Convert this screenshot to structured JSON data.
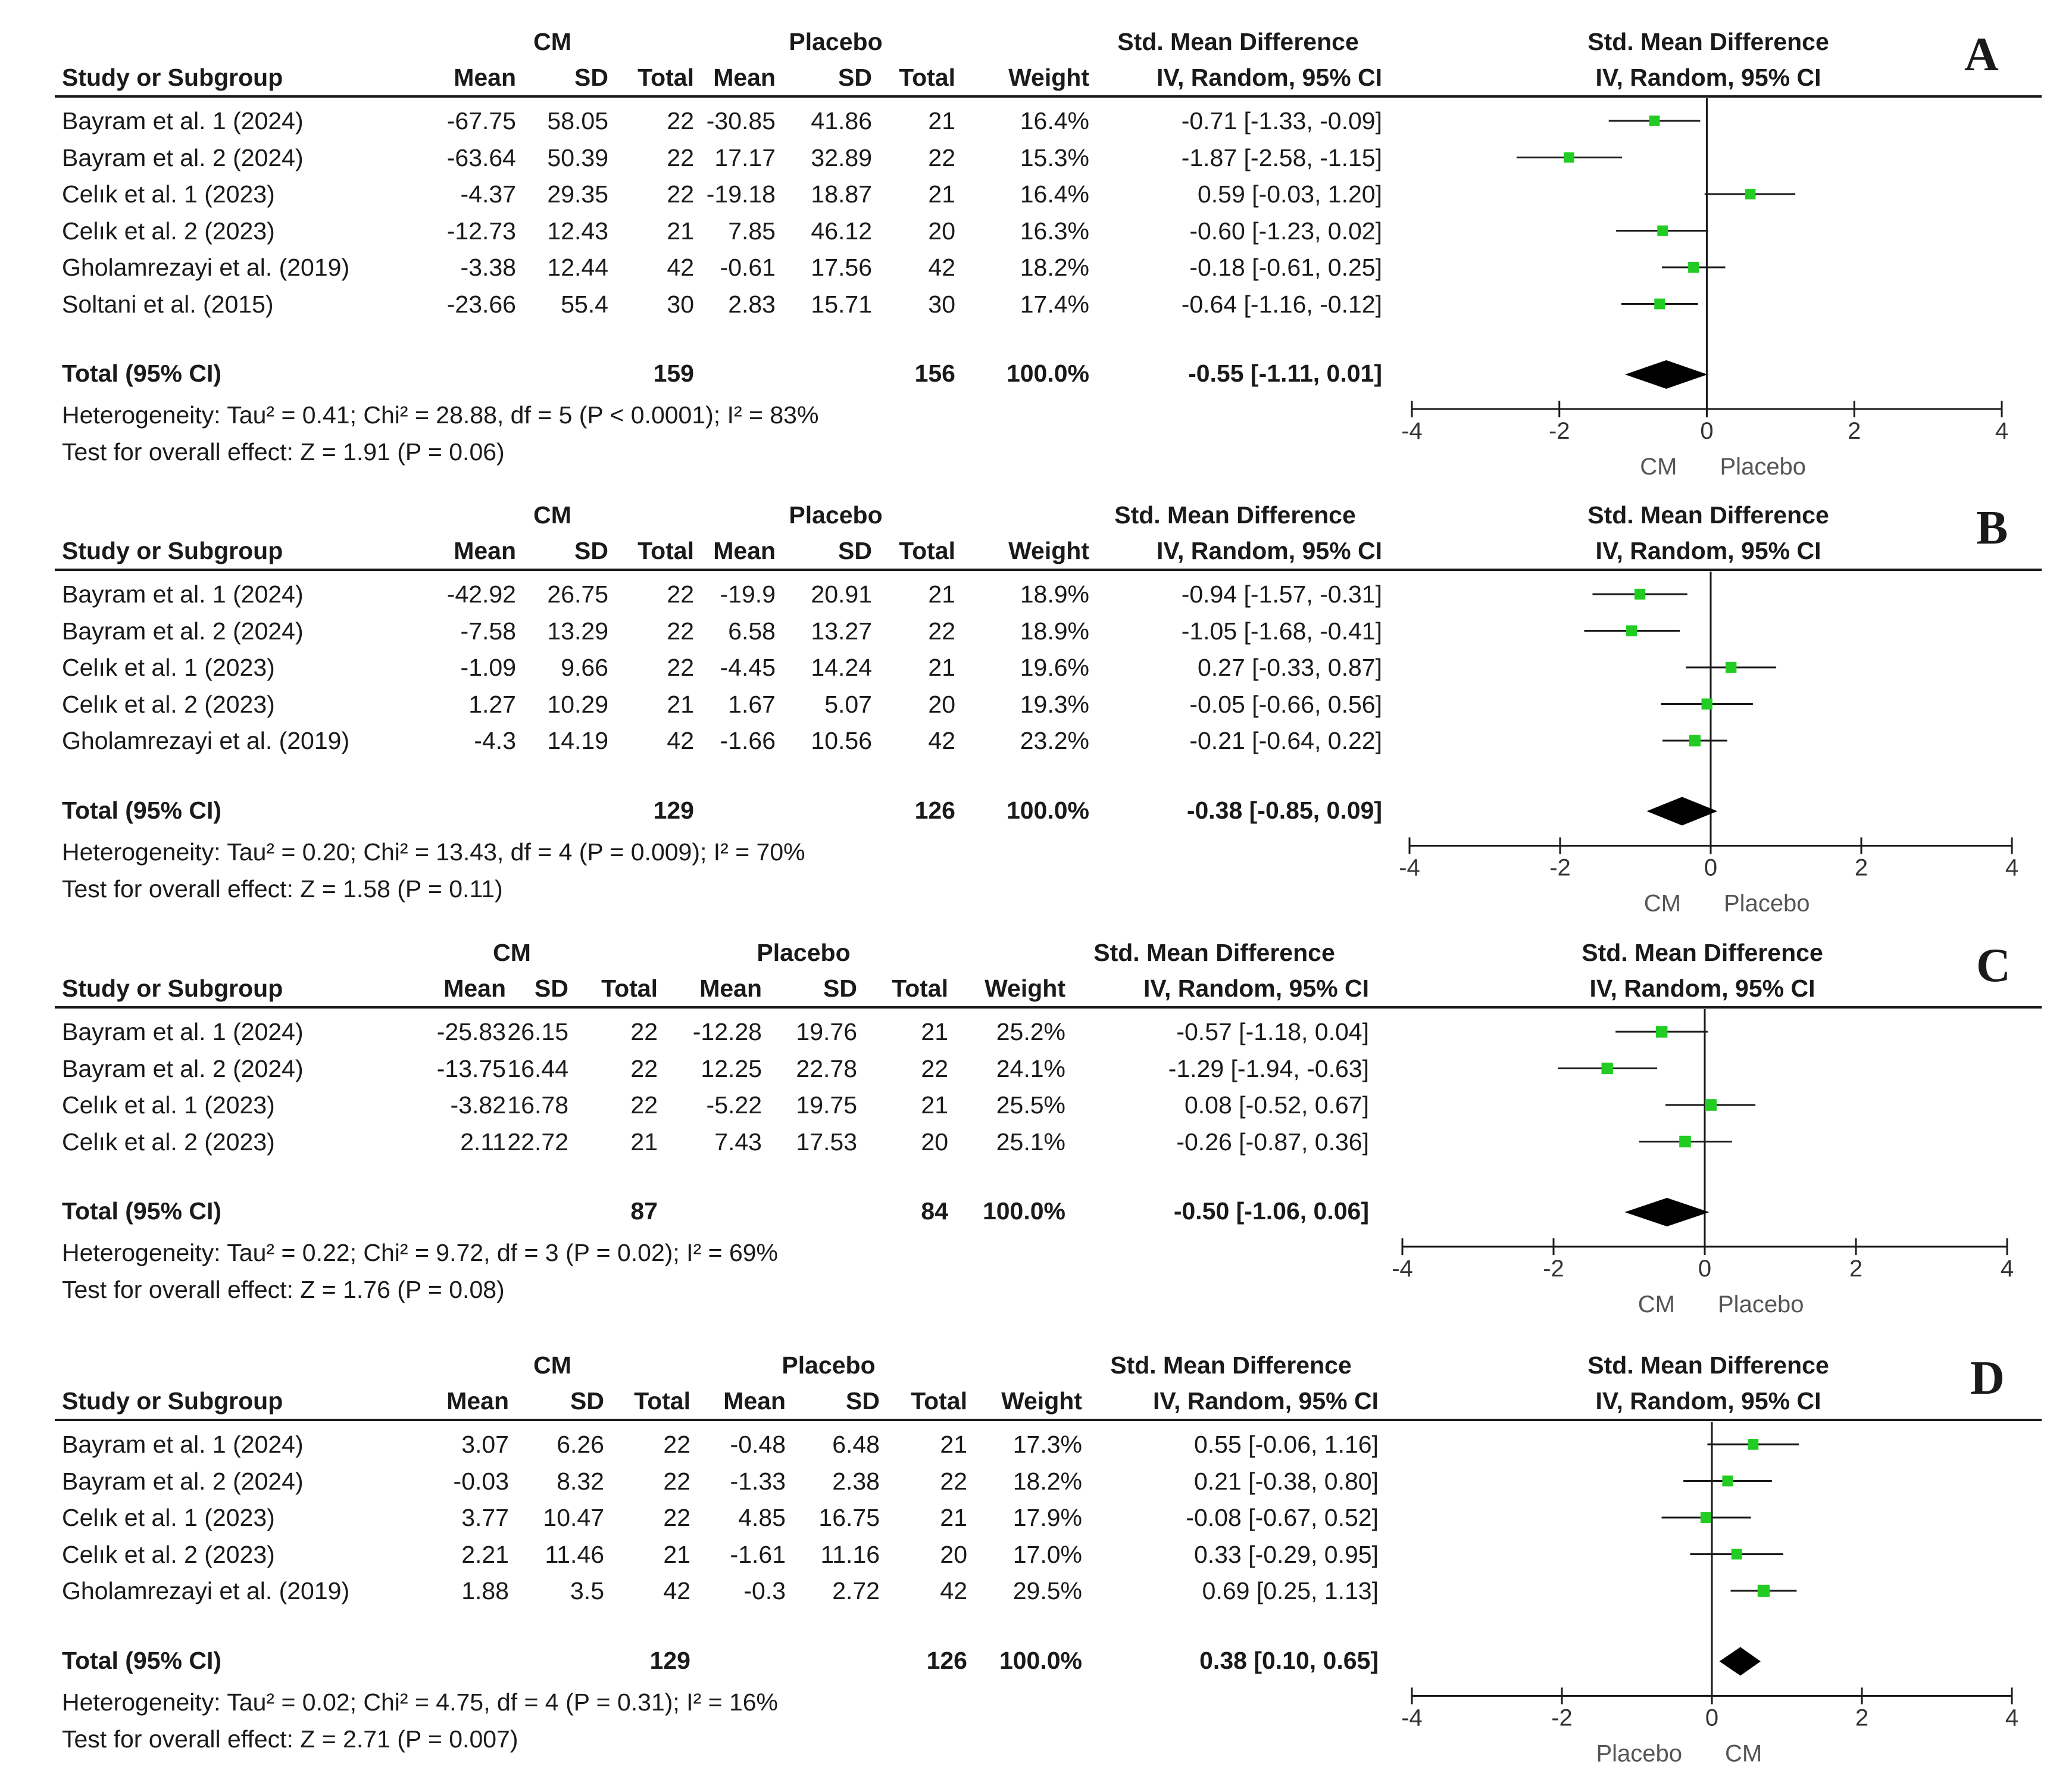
{
  "labels": {
    "group1": "CM",
    "group2": "Placebo",
    "col_study": "Study or Subgroup",
    "col_mean": "Mean",
    "col_sd": "SD",
    "col_total": "Total",
    "col_weight": "Weight",
    "col_smd_title": "Std. Mean Difference",
    "col_smd_method": "IV, Random, 95% CI",
    "total_label": "Total (95% CI)",
    "axis_ticks": [
      "-4",
      "-2",
      "0",
      "2",
      "4"
    ]
  },
  "colors": {
    "marker": "#22cc22",
    "diamond": "#000000",
    "line": "#1a1a1a"
  },
  "panels": [
    {
      "letter": "A",
      "favours_left": "CM",
      "favours_right": "Placebo",
      "studies": [
        {
          "name": "Bayram et al. 1 (2024)",
          "m1": "-67.75",
          "sd1": "58.05",
          "n1": "22",
          "m2": "-30.85",
          "sd2": "41.86",
          "n2": "21",
          "w": "16.4%",
          "ci": "-0.71 [-1.33, -0.09]"
        },
        {
          "name": "Bayram et al. 2 (2024)",
          "m1": "-63.64",
          "sd1": "50.39",
          "n1": "22",
          "m2": "17.17",
          "sd2": "32.89",
          "n2": "22",
          "w": "15.3%",
          "ci": "-1.87 [-2.58, -1.15]"
        },
        {
          "name": "Celık et al. 1 (2023)",
          "m1": "-4.37",
          "sd1": "29.35",
          "n1": "22",
          "m2": "-19.18",
          "sd2": "18.87",
          "n2": "21",
          "w": "16.4%",
          "ci": "0.59 [-0.03, 1.20]"
        },
        {
          "name": "Celık et al. 2 (2023)",
          "m1": "-12.73",
          "sd1": "12.43",
          "n1": "21",
          "m2": "7.85",
          "sd2": "46.12",
          "n2": "20",
          "w": "16.3%",
          "ci": "-0.60 [-1.23, 0.02]"
        },
        {
          "name": "Gholamrezayi et al. (2019)",
          "m1": "-3.38",
          "sd1": "12.44",
          "n1": "42",
          "m2": "-0.61",
          "sd2": "17.56",
          "n2": "42",
          "w": "18.2%",
          "ci": "-0.18 [-0.61, 0.25]"
        },
        {
          "name": "Soltani et al. (2015)",
          "m1": "-23.66",
          "sd1": "55.4",
          "n1": "30",
          "m2": "2.83",
          "sd2": "15.71",
          "n2": "30",
          "w": "17.4%",
          "ci": "-0.64 [-1.16, -0.12]"
        }
      ],
      "total": {
        "n1": "159",
        "n2": "156",
        "w": "100.0%",
        "ci": "-0.55 [-1.11, 0.01]"
      },
      "heterogeneity": "Heterogeneity: Tau² = 0.41; Chi² = 28.88, df = 5 (P < 0.0001); I² = 83%",
      "overall": "Test for overall effect: Z = 1.91 (P = 0.06)"
    },
    {
      "letter": "B",
      "favours_left": "CM",
      "favours_right": "Placebo",
      "studies": [
        {
          "name": "Bayram et al. 1 (2024)",
          "m1": "-42.92",
          "sd1": "26.75",
          "n1": "22",
          "m2": "-19.9",
          "sd2": "20.91",
          "n2": "21",
          "w": "18.9%",
          "ci": "-0.94 [-1.57, -0.31]"
        },
        {
          "name": "Bayram et al. 2 (2024)",
          "m1": "-7.58",
          "sd1": "13.29",
          "n1": "22",
          "m2": "6.58",
          "sd2": "13.27",
          "n2": "22",
          "w": "18.9%",
          "ci": "-1.05 [-1.68, -0.41]"
        },
        {
          "name": "Celık et al. 1 (2023)",
          "m1": "-1.09",
          "sd1": "9.66",
          "n1": "22",
          "m2": "-4.45",
          "sd2": "14.24",
          "n2": "21",
          "w": "19.6%",
          "ci": "0.27 [-0.33, 0.87]"
        },
        {
          "name": "Celık et al. 2 (2023)",
          "m1": "1.27",
          "sd1": "10.29",
          "n1": "21",
          "m2": "1.67",
          "sd2": "5.07",
          "n2": "20",
          "w": "19.3%",
          "ci": "-0.05 [-0.66, 0.56]"
        },
        {
          "name": "Gholamrezayi et al. (2019)",
          "m1": "-4.3",
          "sd1": "14.19",
          "n1": "42",
          "m2": "-1.66",
          "sd2": "10.56",
          "n2": "42",
          "w": "23.2%",
          "ci": "-0.21 [-0.64, 0.22]"
        }
      ],
      "total": {
        "n1": "129",
        "n2": "126",
        "w": "100.0%",
        "ci": "-0.38 [-0.85, 0.09]"
      },
      "heterogeneity": "Heterogeneity: Tau² = 0.20; Chi² = 13.43, df = 4 (P = 0.009); I² = 70%",
      "overall": "Test for overall effect: Z = 1.58 (P = 0.11)"
    },
    {
      "letter": "C",
      "favours_left": "CM",
      "favours_right": "Placebo",
      "studies": [
        {
          "name": "Bayram et al. 1 (2024)",
          "m1": "-25.83",
          "sd1": "26.15",
          "n1": "22",
          "m2": "-12.28",
          "sd2": "19.76",
          "n2": "21",
          "w": "25.2%",
          "ci": "-0.57 [-1.18, 0.04]"
        },
        {
          "name": "Bayram et al. 2 (2024)",
          "m1": "-13.75",
          "sd1": "16.44",
          "n1": "22",
          "m2": "12.25",
          "sd2": "22.78",
          "n2": "22",
          "w": "24.1%",
          "ci": "-1.29 [-1.94, -0.63]"
        },
        {
          "name": "Celık et al. 1 (2023)",
          "m1": "-3.82",
          "sd1": "16.78",
          "n1": "22",
          "m2": "-5.22",
          "sd2": "19.75",
          "n2": "21",
          "w": "25.5%",
          "ci": "0.08 [-0.52, 0.67]"
        },
        {
          "name": "Celık et al. 2 (2023)",
          "m1": "2.11",
          "sd1": "22.72",
          "n1": "21",
          "m2": "7.43",
          "sd2": "17.53",
          "n2": "20",
          "w": "25.1%",
          "ci": "-0.26 [-0.87, 0.36]"
        }
      ],
      "total": {
        "n1": "87",
        "n2": "84",
        "w": "100.0%",
        "ci": "-0.50 [-1.06, 0.06]"
      },
      "heterogeneity": "Heterogeneity: Tau² = 0.22; Chi² = 9.72, df = 3 (P = 0.02); I² = 69%",
      "overall": "Test for overall effect: Z = 1.76 (P = 0.08)"
    },
    {
      "letter": "D",
      "favours_left": "Placebo",
      "favours_right": "CM",
      "studies": [
        {
          "name": "Bayram et al. 1 (2024)",
          "m1": "3.07",
          "sd1": "6.26",
          "n1": "22",
          "m2": "-0.48",
          "sd2": "6.48",
          "n2": "21",
          "w": "17.3%",
          "ci": "0.55 [-0.06, 1.16]"
        },
        {
          "name": "Bayram et al. 2 (2024)",
          "m1": "-0.03",
          "sd1": "8.32",
          "n1": "22",
          "m2": "-1.33",
          "sd2": "2.38",
          "n2": "22",
          "w": "18.2%",
          "ci": "0.21 [-0.38, 0.80]"
        },
        {
          "name": "Celık et al. 1 (2023)",
          "m1": "3.77",
          "sd1": "10.47",
          "n1": "22",
          "m2": "4.85",
          "sd2": "16.75",
          "n2": "21",
          "w": "17.9%",
          "ci": "-0.08 [-0.67, 0.52]"
        },
        {
          "name": "Celık et al. 2 (2023)",
          "m1": "2.21",
          "sd1": "11.46",
          "n1": "21",
          "m2": "-1.61",
          "sd2": "11.16",
          "n2": "20",
          "w": "17.0%",
          "ci": "0.33 [-0.29, 0.95]"
        },
        {
          "name": "Gholamrezayi et al. (2019)",
          "m1": "1.88",
          "sd1": "3.5",
          "n1": "42",
          "m2": "-0.3",
          "sd2": "2.72",
          "n2": "42",
          "w": "29.5%",
          "ci": "0.69 [0.25, 1.13]"
        }
      ],
      "total": {
        "n1": "129",
        "n2": "126",
        "w": "100.0%",
        "ci": "0.38 [0.10, 0.65]"
      },
      "heterogeneity": "Heterogeneity: Tau² = 0.02; Chi² = 4.75, df = 4 (P = 0.31); I² = 16%",
      "overall": "Test for overall effect: Z = 2.71 (P = 0.007)"
    }
  ],
  "chart_data": [
    {
      "type": "forest",
      "title": "A",
      "xlim": [
        -4,
        4
      ],
      "xticks": [
        -4,
        -2,
        0,
        2,
        4
      ],
      "effect": [
        -0.71,
        -1.87,
        0.59,
        -0.6,
        -0.18,
        -0.64
      ],
      "ci_low": [
        -1.33,
        -2.58,
        -0.03,
        -1.23,
        -0.61,
        -1.16
      ],
      "ci_high": [
        -0.09,
        -1.15,
        1.2,
        0.02,
        0.25,
        -0.12
      ],
      "weights": [
        16.4,
        15.3,
        16.4,
        16.3,
        18.2,
        17.4
      ],
      "pooled": {
        "effect": -0.55,
        "ci_low": -1.11,
        "ci_high": 0.01
      }
    },
    {
      "type": "forest",
      "title": "B",
      "xlim": [
        -4,
        4
      ],
      "xticks": [
        -4,
        -2,
        0,
        2,
        4
      ],
      "effect": [
        -0.94,
        -1.05,
        0.27,
        -0.05,
        -0.21
      ],
      "ci_low": [
        -1.57,
        -1.68,
        -0.33,
        -0.66,
        -0.64
      ],
      "ci_high": [
        -0.31,
        -0.41,
        0.87,
        0.56,
        0.22
      ],
      "weights": [
        18.9,
        18.9,
        19.6,
        19.3,
        23.2
      ],
      "pooled": {
        "effect": -0.38,
        "ci_low": -0.85,
        "ci_high": 0.09
      }
    },
    {
      "type": "forest",
      "title": "C",
      "xlim": [
        -4,
        4
      ],
      "xticks": [
        -4,
        -2,
        0,
        2,
        4
      ],
      "effect": [
        -0.57,
        -1.29,
        0.08,
        -0.26
      ],
      "ci_low": [
        -1.18,
        -1.94,
        -0.52,
        -0.87
      ],
      "ci_high": [
        0.04,
        -0.63,
        0.67,
        0.36
      ],
      "weights": [
        25.2,
        24.1,
        25.5,
        25.1
      ],
      "pooled": {
        "effect": -0.5,
        "ci_low": -1.06,
        "ci_high": 0.06
      }
    },
    {
      "type": "forest",
      "title": "D",
      "xlim": [
        -4,
        4
      ],
      "xticks": [
        -4,
        -2,
        0,
        2,
        4
      ],
      "effect": [
        0.55,
        0.21,
        -0.08,
        0.33,
        0.69
      ],
      "ci_low": [
        -0.06,
        -0.38,
        -0.67,
        -0.29,
        0.25
      ],
      "ci_high": [
        1.16,
        0.8,
        0.52,
        0.95,
        1.13
      ],
      "weights": [
        17.3,
        18.2,
        17.9,
        17.0,
        29.5
      ],
      "pooled": {
        "effect": 0.38,
        "ci_low": 0.1,
        "ci_high": 0.65
      }
    }
  ]
}
